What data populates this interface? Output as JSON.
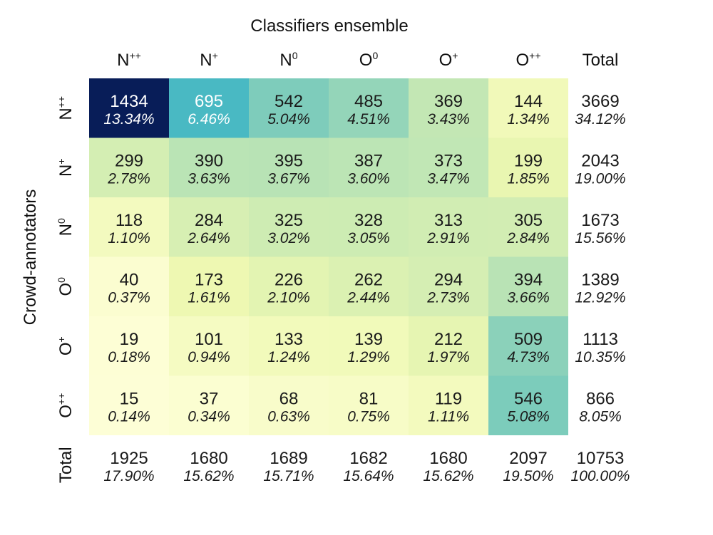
{
  "chart_data": {
    "type": "heatmap",
    "title": "Classifiers ensemble",
    "xlabel": "Classifiers ensemble",
    "ylabel": "Crowd-annotators",
    "columns": [
      {
        "base": "N",
        "sup": "++"
      },
      {
        "base": "N",
        "sup": "+"
      },
      {
        "base": "N",
        "sup": "0"
      },
      {
        "base": "O",
        "sup": "0"
      },
      {
        "base": "O",
        "sup": "+"
      },
      {
        "base": "O",
        "sup": "++"
      }
    ],
    "rows": [
      {
        "base": "N",
        "sup": "++"
      },
      {
        "base": "N",
        "sup": "+"
      },
      {
        "base": "N",
        "sup": "0"
      },
      {
        "base": "O",
        "sup": "0"
      },
      {
        "base": "O",
        "sup": "+"
      },
      {
        "base": "O",
        "sup": "++"
      }
    ],
    "total_label": "Total",
    "counts": [
      [
        1434,
        695,
        542,
        485,
        369,
        144
      ],
      [
        299,
        390,
        395,
        387,
        373,
        199
      ],
      [
        118,
        284,
        325,
        328,
        313,
        305
      ],
      [
        40,
        173,
        226,
        262,
        294,
        394
      ],
      [
        19,
        101,
        133,
        139,
        212,
        509
      ],
      [
        15,
        37,
        68,
        81,
        119,
        546
      ]
    ],
    "percents": [
      [
        "13.34%",
        "6.46%",
        "5.04%",
        "4.51%",
        "3.43%",
        "1.34%"
      ],
      [
        "2.78%",
        "3.63%",
        "3.67%",
        "3.60%",
        "3.47%",
        "1.85%"
      ],
      [
        "1.10%",
        "2.64%",
        "3.02%",
        "3.05%",
        "2.91%",
        "2.84%"
      ],
      [
        "0.37%",
        "1.61%",
        "2.10%",
        "2.44%",
        "2.73%",
        "3.66%"
      ],
      [
        "0.18%",
        "0.94%",
        "1.24%",
        "1.29%",
        "1.97%",
        "4.73%"
      ],
      [
        "0.14%",
        "0.34%",
        "0.63%",
        "0.75%",
        "1.11%",
        "5.08%"
      ]
    ],
    "row_totals": [
      3669,
      2043,
      1673,
      1389,
      1113,
      866
    ],
    "row_total_percents": [
      "34.12%",
      "19.00%",
      "15.56%",
      "12.92%",
      "10.35%",
      "8.05%"
    ],
    "col_totals": [
      1925,
      1680,
      1689,
      1682,
      1680,
      2097
    ],
    "col_total_percents": [
      "17.90%",
      "15.62%",
      "15.71%",
      "15.64%",
      "15.62%",
      "19.50%"
    ],
    "grand_total": 10753,
    "grand_total_percent": "100.00%",
    "colormap": "YlGnBu",
    "color_range": [
      0,
      1434
    ]
  }
}
